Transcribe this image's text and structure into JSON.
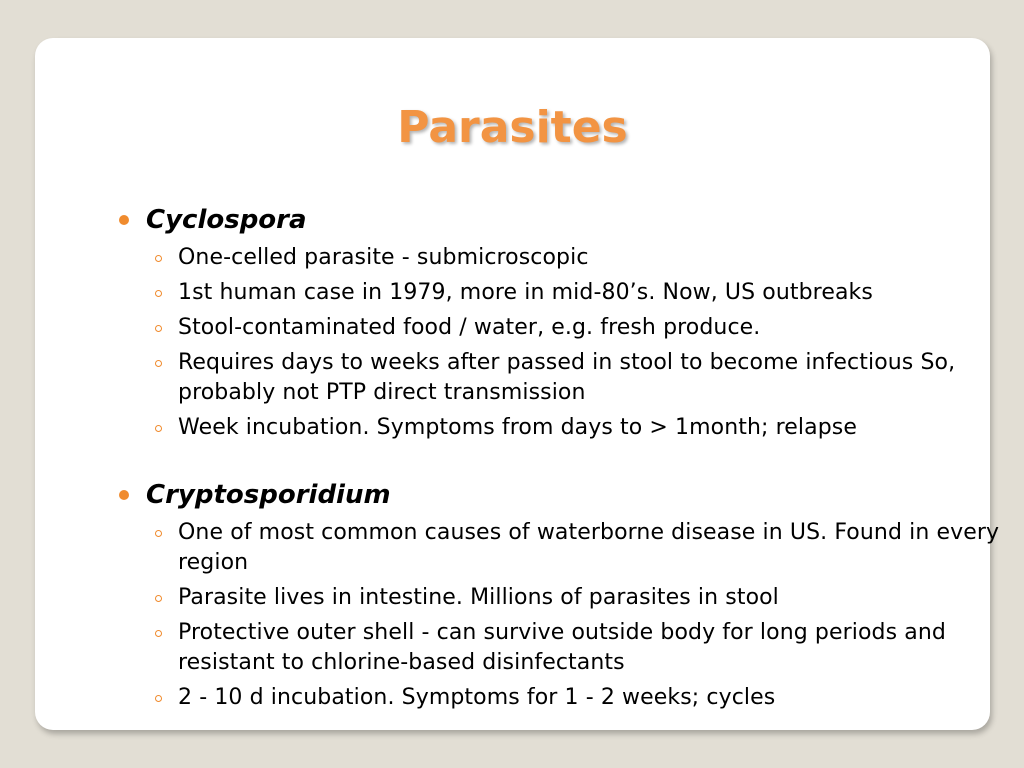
{
  "title": "Parasites",
  "colors": {
    "title": "#f29443",
    "bullet": "#f08b2e",
    "background": "#e2ded4"
  },
  "sections": [
    {
      "heading": "Cyclospora",
      "items": [
        "One-celled parasite - submicroscopic",
        "1st human case in 1979, more in mid-80’s. Now, US outbreaks",
        "Stool-contaminated food / water, e.g. fresh produce.",
        "Requires days to weeks after passed in stool to become infectious  So, probably not PTP direct transmission",
        "Week incubation.  Symptoms from days to > 1month; relapse"
      ]
    },
    {
      "heading": "Cryptosporidium",
      "items": [
        "One of most common causes of waterborne disease in US.  Found in every region",
        "Parasite lives in intestine.  Millions of parasites in stool",
        "Protective outer shell - can survive outside body for long periods and resistant to chlorine-based disinfectants",
        "2 - 10 d incubation.  Symptoms for 1 - 2 weeks; cycles"
      ]
    }
  ]
}
